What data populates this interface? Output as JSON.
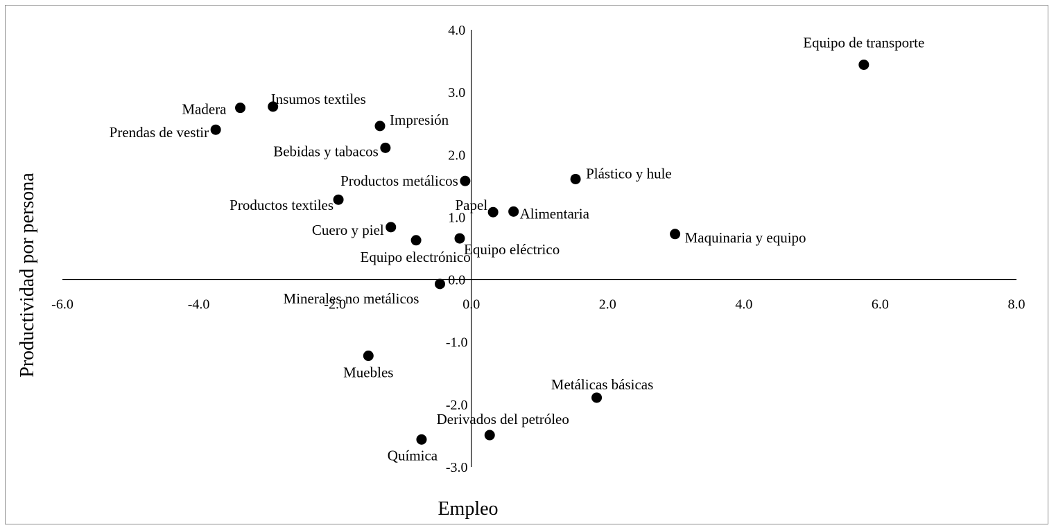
{
  "chart_data": {
    "type": "scatter",
    "title": "",
    "xlabel": "Empleo",
    "ylabel": "Productividad por persona",
    "xlim": [
      -6,
      8
    ],
    "ylim": [
      -3,
      4
    ],
    "xticks": [
      "-6.0",
      "-4.0",
      "-2.0",
      "0.0",
      "2.0",
      "4.0",
      "6.0",
      "8.0"
    ],
    "yticks": [
      "4.0",
      "3.0",
      "2.0",
      "1.0",
      "0.0",
      "-1.0",
      "-2.0",
      "-3.0"
    ],
    "grid": false,
    "marker_color": "#000000",
    "points": [
      {
        "label": "Equipo de transporte",
        "x": 5.76,
        "y": 3.44
      },
      {
        "label": "Madera",
        "x": -3.39,
        "y": 2.75
      },
      {
        "label": "Insumos textiles",
        "x": -2.91,
        "y": 2.77
      },
      {
        "label": "Prendas de vestir",
        "x": -3.75,
        "y": 2.4
      },
      {
        "label": "Impresión",
        "x": -1.34,
        "y": 2.46
      },
      {
        "label": "Bebidas y tabacos",
        "x": -1.26,
        "y": 2.11
      },
      {
        "label": "Productos metálicos",
        "x": -0.09,
        "y": 1.58
      },
      {
        "label": "Plástico y hule",
        "x": 1.53,
        "y": 1.61
      },
      {
        "label": "Productos textiles",
        "x": -1.95,
        "y": 1.28
      },
      {
        "label": "Papel",
        "x": 0.32,
        "y": 1.08
      },
      {
        "label": "Alimentaria",
        "x": 0.62,
        "y": 1.09
      },
      {
        "label": "Cuero y piel",
        "x": -1.18,
        "y": 0.84
      },
      {
        "label": "Maquinaria y equipo",
        "x": 2.99,
        "y": 0.73
      },
      {
        "label": "Equipo electrónico",
        "x": -0.81,
        "y": 0.63
      },
      {
        "label": "Equipo eléctrico",
        "x": -0.17,
        "y": 0.66
      },
      {
        "label": "Minerales no metálicos",
        "x": -0.46,
        "y": -0.07
      },
      {
        "label": "Muebles",
        "x": -1.51,
        "y": -1.22
      },
      {
        "label": "Metálicas básicas",
        "x": 1.84,
        "y": -1.89
      },
      {
        "label": "Derivados del petróleo",
        "x": 0.27,
        "y": -2.49
      },
      {
        "label": "Química",
        "x": -0.73,
        "y": -2.56
      }
    ]
  }
}
